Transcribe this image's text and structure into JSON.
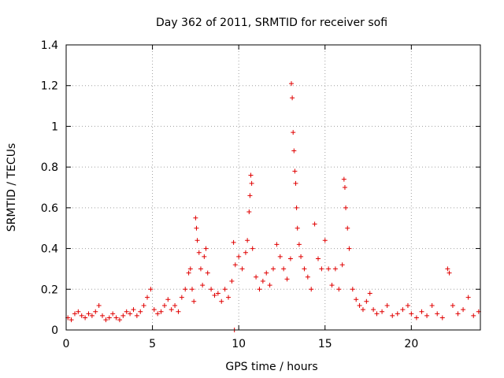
{
  "chart_data": {
    "type": "scatter",
    "title": "Day 362 of 2011, SRMTID for receiver sofi",
    "xlabel": "GPS time / hours",
    "ylabel": "SRMTID / TECUs",
    "xlim": [
      0,
      24
    ],
    "ylim": [
      0,
      1.4
    ],
    "xticks": [
      0,
      5,
      10,
      15,
      20
    ],
    "xtick_labels": [
      "0",
      "5",
      "10",
      "15",
      "20"
    ],
    "yticks": [
      0,
      0.2,
      0.4,
      0.6,
      0.8,
      1,
      1.2,
      1.4
    ],
    "ytick_labels": [
      "0",
      "0.2",
      "0.4",
      "0.6",
      "0.8",
      "1",
      "1.2",
      "1.4"
    ],
    "grid": true,
    "marker": "plus",
    "color": "#e00000",
    "series": [
      {
        "name": "SRMTID",
        "points": [
          [
            0.1,
            0.06
          ],
          [
            0.3,
            0.05
          ],
          [
            0.5,
            0.08
          ],
          [
            0.7,
            0.09
          ],
          [
            0.9,
            0.07
          ],
          [
            1.1,
            0.06
          ],
          [
            1.3,
            0.08
          ],
          [
            1.5,
            0.07
          ],
          [
            1.7,
            0.09
          ],
          [
            1.9,
            0.12
          ],
          [
            2.1,
            0.07
          ],
          [
            2.3,
            0.05
          ],
          [
            2.5,
            0.06
          ],
          [
            2.7,
            0.08
          ],
          [
            2.9,
            0.06
          ],
          [
            3.1,
            0.05
          ],
          [
            3.3,
            0.07
          ],
          [
            3.5,
            0.09
          ],
          [
            3.7,
            0.08
          ],
          [
            3.9,
            0.1
          ],
          [
            4.1,
            0.07
          ],
          [
            4.3,
            0.09
          ],
          [
            4.5,
            0.12
          ],
          [
            4.7,
            0.16
          ],
          [
            4.9,
            0.2
          ],
          [
            5.1,
            0.1
          ],
          [
            5.3,
            0.08
          ],
          [
            5.5,
            0.09
          ],
          [
            5.7,
            0.12
          ],
          [
            5.9,
            0.15
          ],
          [
            6.1,
            0.1
          ],
          [
            6.3,
            0.12
          ],
          [
            6.5,
            0.09
          ],
          [
            6.7,
            0.16
          ],
          [
            6.9,
            0.2
          ],
          [
            7.1,
            0.28
          ],
          [
            7.2,
            0.3
          ],
          [
            7.3,
            0.2
          ],
          [
            7.4,
            0.14
          ],
          [
            7.5,
            0.55
          ],
          [
            7.55,
            0.5
          ],
          [
            7.6,
            0.44
          ],
          [
            7.7,
            0.38
          ],
          [
            7.8,
            0.3
          ],
          [
            7.9,
            0.22
          ],
          [
            8.0,
            0.36
          ],
          [
            8.1,
            0.4
          ],
          [
            8.2,
            0.28
          ],
          [
            8.4,
            0.2
          ],
          [
            8.6,
            0.17
          ],
          [
            8.8,
            0.18
          ],
          [
            9.0,
            0.14
          ],
          [
            9.2,
            0.2
          ],
          [
            9.4,
            0.16
          ],
          [
            9.6,
            0.24
          ],
          [
            9.7,
            0.43
          ],
          [
            9.75,
            0.0
          ],
          [
            9.8,
            0.32
          ],
          [
            10.0,
            0.36
          ],
          [
            10.2,
            0.3
          ],
          [
            10.4,
            0.38
          ],
          [
            10.5,
            0.44
          ],
          [
            10.6,
            0.58
          ],
          [
            10.65,
            0.66
          ],
          [
            10.7,
            0.76
          ],
          [
            10.75,
            0.72
          ],
          [
            10.8,
            0.4
          ],
          [
            11.0,
            0.26
          ],
          [
            11.2,
            0.2
          ],
          [
            11.4,
            0.24
          ],
          [
            11.6,
            0.28
          ],
          [
            11.8,
            0.22
          ],
          [
            12.0,
            0.3
          ],
          [
            12.2,
            0.42
          ],
          [
            12.4,
            0.36
          ],
          [
            12.6,
            0.3
          ],
          [
            12.8,
            0.25
          ],
          [
            13.0,
            0.35
          ],
          [
            13.05,
            1.21
          ],
          [
            13.1,
            1.14
          ],
          [
            13.15,
            0.97
          ],
          [
            13.2,
            0.88
          ],
          [
            13.25,
            0.78
          ],
          [
            13.3,
            0.72
          ],
          [
            13.35,
            0.6
          ],
          [
            13.4,
            0.5
          ],
          [
            13.5,
            0.42
          ],
          [
            13.6,
            0.36
          ],
          [
            13.8,
            0.3
          ],
          [
            14.0,
            0.26
          ],
          [
            14.2,
            0.2
          ],
          [
            14.4,
            0.52
          ],
          [
            14.6,
            0.35
          ],
          [
            14.8,
            0.3
          ],
          [
            15.0,
            0.44
          ],
          [
            15.2,
            0.3
          ],
          [
            15.4,
            0.22
          ],
          [
            15.6,
            0.3
          ],
          [
            15.8,
            0.2
          ],
          [
            16.0,
            0.32
          ],
          [
            16.1,
            0.74
          ],
          [
            16.15,
            0.7
          ],
          [
            16.2,
            0.6
          ],
          [
            16.3,
            0.5
          ],
          [
            16.4,
            0.4
          ],
          [
            16.6,
            0.2
          ],
          [
            16.8,
            0.15
          ],
          [
            17.0,
            0.12
          ],
          [
            17.2,
            0.1
          ],
          [
            17.4,
            0.14
          ],
          [
            17.6,
            0.18
          ],
          [
            17.8,
            0.1
          ],
          [
            18.0,
            0.08
          ],
          [
            18.3,
            0.09
          ],
          [
            18.6,
            0.12
          ],
          [
            18.9,
            0.07
          ],
          [
            19.2,
            0.08
          ],
          [
            19.5,
            0.1
          ],
          [
            19.8,
            0.12
          ],
          [
            20.0,
            0.08
          ],
          [
            20.3,
            0.06
          ],
          [
            20.6,
            0.09
          ],
          [
            20.9,
            0.07
          ],
          [
            21.2,
            0.12
          ],
          [
            21.5,
            0.08
          ],
          [
            21.8,
            0.06
          ],
          [
            22.1,
            0.3
          ],
          [
            22.2,
            0.28
          ],
          [
            22.4,
            0.12
          ],
          [
            22.7,
            0.08
          ],
          [
            23.0,
            0.1
          ],
          [
            23.3,
            0.16
          ],
          [
            23.6,
            0.07
          ],
          [
            23.9,
            0.09
          ]
        ]
      }
    ]
  }
}
